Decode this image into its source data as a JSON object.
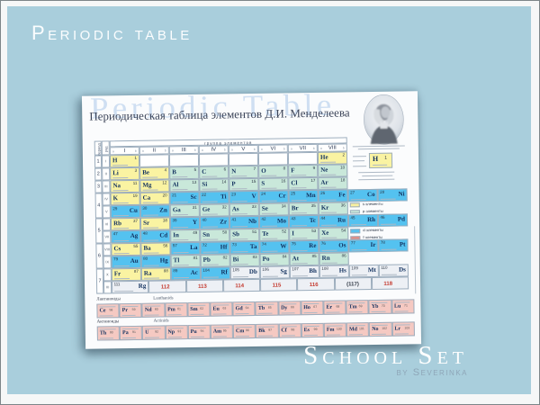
{
  "page": {
    "title": "Periodic table",
    "background": "#a9cedc",
    "brand": {
      "line1": "School Set",
      "line2": "by Severinka"
    }
  },
  "poster": {
    "watermark": "Periodic Table",
    "title": "Периодическая таблица элементов Д.И. Менделеева",
    "portrait": "Mendeleev portrait",
    "table": {
      "group_header": "группа элементов",
      "groups": [
        "I",
        "II",
        "III",
        "IV",
        "V",
        "VI",
        "VII",
        "VIII"
      ],
      "sub_a": "a",
      "sub_b": "b",
      "period_label": "период",
      "row_label": "ряд",
      "periods": [
        {
          "label": "1",
          "row": 0,
          "span": 1
        },
        {
          "label": "2",
          "row": 1,
          "span": 1
        },
        {
          "label": "3",
          "row": 2,
          "span": 1
        },
        {
          "label": "4",
          "row": 3,
          "span": 2
        },
        {
          "label": "5",
          "row": 5,
          "span": 2
        },
        {
          "label": "6",
          "row": 7,
          "span": 2
        },
        {
          "label": "7",
          "row": 9,
          "span": 2
        }
      ],
      "colors": {
        "yellow": "#faf3a2",
        "teal": "#c9e8da",
        "blue": "#54c2f0",
        "gray": "#edf0f5",
        "pink": "#f5c9c2",
        "red_number": "#c4372c"
      },
      "legend": [
        {
          "color": "#f8f0a0",
          "label": "s-элементы"
        },
        {
          "color": "#c9e8da",
          "label": "p-элементы"
        },
        {
          "color": "#54c2f0",
          "label": "d-элементы"
        },
        {
          "color": "#e88a80",
          "label": "f-элементы"
        }
      ],
      "sample": {
        "symbol": "H",
        "number": "1"
      },
      "rows": [
        {
          "ryad": "I",
          "cells": [
            {
              "g": 1,
              "n": "1",
              "s": "H",
              "c": "y"
            },
            {
              "g": 8,
              "n": "2",
              "s": "He",
              "c": "y"
            }
          ]
        },
        {
          "ryad": "II",
          "cells": [
            {
              "g": 1,
              "n": "3",
              "s": "Li",
              "c": "y"
            },
            {
              "g": 2,
              "n": "4",
              "s": "Be",
              "c": "y"
            },
            {
              "g": 3,
              "n": "5",
              "s": "B",
              "c": "t"
            },
            {
              "g": 4,
              "n": "6",
              "s": "C",
              "c": "t"
            },
            {
              "g": 5,
              "n": "7",
              "s": "N",
              "c": "t"
            },
            {
              "g": 6,
              "n": "8",
              "s": "O",
              "c": "t"
            },
            {
              "g": 7,
              "n": "9",
              "s": "F",
              "c": "t"
            },
            {
              "g": 8,
              "n": "10",
              "s": "Ne",
              "c": "t"
            }
          ]
        },
        {
          "ryad": "III",
          "cells": [
            {
              "g": 1,
              "n": "11",
              "s": "Na",
              "c": "y"
            },
            {
              "g": 2,
              "n": "12",
              "s": "Mg",
              "c": "y"
            },
            {
              "g": 3,
              "n": "13",
              "s": "Al",
              "c": "t"
            },
            {
              "g": 4,
              "n": "14",
              "s": "Si",
              "c": "t"
            },
            {
              "g": 5,
              "n": "15",
              "s": "P",
              "c": "t"
            },
            {
              "g": 6,
              "n": "16",
              "s": "S",
              "c": "t"
            },
            {
              "g": 7,
              "n": "17",
              "s": "Cl",
              "c": "t"
            },
            {
              "g": 8,
              "n": "18",
              "s": "Ar",
              "c": "t"
            }
          ]
        },
        {
          "ryad": "IV",
          "cells": [
            {
              "g": 1,
              "n": "19",
              "s": "K",
              "c": "y"
            },
            {
              "g": 2,
              "n": "20",
              "s": "Ca",
              "c": "y"
            },
            {
              "g": 3,
              "n": "21",
              "s": "Sc",
              "c": "b"
            },
            {
              "g": 4,
              "n": "22",
              "s": "Ti",
              "c": "b"
            },
            {
              "g": 5,
              "n": "23",
              "s": "V",
              "c": "b"
            },
            {
              "g": 6,
              "n": "24",
              "s": "Cr",
              "c": "b"
            },
            {
              "g": 7,
              "n": "25",
              "s": "Mn",
              "c": "b"
            },
            {
              "g": 8,
              "n": "26",
              "s": "Fe",
              "c": "b"
            },
            {
              "g": 9,
              "n": "27",
              "s": "Co",
              "c": "b"
            },
            {
              "g": 10,
              "n": "28",
              "s": "Ni",
              "c": "b"
            }
          ]
        },
        {
          "ryad": "V",
          "cells": [
            {
              "g": 1,
              "n": "29",
              "s": "Cu",
              "c": "b"
            },
            {
              "g": 2,
              "n": "30",
              "s": "Zn",
              "c": "b"
            },
            {
              "g": 3,
              "n": "31",
              "s": "Ga",
              "c": "t"
            },
            {
              "g": 4,
              "n": "32",
              "s": "Ge",
              "c": "t"
            },
            {
              "g": 5,
              "n": "33",
              "s": "As",
              "c": "t"
            },
            {
              "g": 6,
              "n": "34",
              "s": "Se",
              "c": "t"
            },
            {
              "g": 7,
              "n": "35",
              "s": "Br",
              "c": "t"
            },
            {
              "g": 8,
              "n": "36",
              "s": "Kr",
              "c": "t"
            }
          ]
        },
        {
          "ryad": "VI",
          "cells": [
            {
              "g": 1,
              "n": "37",
              "s": "Rb",
              "c": "y"
            },
            {
              "g": 2,
              "n": "38",
              "s": "Sr",
              "c": "y"
            },
            {
              "g": 3,
              "n": "39",
              "s": "Y",
              "c": "b"
            },
            {
              "g": 4,
              "n": "40",
              "s": "Zr",
              "c": "b"
            },
            {
              "g": 5,
              "n": "41",
              "s": "Nb",
              "c": "b"
            },
            {
              "g": 6,
              "n": "42",
              "s": "Mo",
              "c": "b"
            },
            {
              "g": 7,
              "n": "43",
              "s": "Tc",
              "c": "b"
            },
            {
              "g": 8,
              "n": "44",
              "s": "Ru",
              "c": "b"
            },
            {
              "g": 9,
              "n": "45",
              "s": "Rh",
              "c": "b"
            },
            {
              "g": 10,
              "n": "46",
              "s": "Pd",
              "c": "b"
            }
          ]
        },
        {
          "ryad": "VII",
          "cells": [
            {
              "g": 1,
              "n": "47",
              "s": "Ag",
              "c": "b"
            },
            {
              "g": 2,
              "n": "48",
              "s": "Cd",
              "c": "b"
            },
            {
              "g": 3,
              "n": "49",
              "s": "In",
              "c": "t"
            },
            {
              "g": 4,
              "n": "50",
              "s": "Sn",
              "c": "t"
            },
            {
              "g": 5,
              "n": "51",
              "s": "Sb",
              "c": "t"
            },
            {
              "g": 6,
              "n": "52",
              "s": "Te",
              "c": "t"
            },
            {
              "g": 7,
              "n": "53",
              "s": "I",
              "c": "t"
            },
            {
              "g": 8,
              "n": "54",
              "s": "Xe",
              "c": "t"
            }
          ]
        },
        {
          "ryad": "VIII",
          "cells": [
            {
              "g": 1,
              "n": "55",
              "s": "Cs",
              "c": "y"
            },
            {
              "g": 2,
              "n": "56",
              "s": "Ba",
              "c": "y"
            },
            {
              "g": 3,
              "n": "57",
              "s": "La",
              "c": "b"
            },
            {
              "g": 4,
              "n": "72",
              "s": "Hf",
              "c": "b"
            },
            {
              "g": 5,
              "n": "73",
              "s": "Ta",
              "c": "b"
            },
            {
              "g": 6,
              "n": "74",
              "s": "W",
              "c": "b"
            },
            {
              "g": 7,
              "n": "75",
              "s": "Re",
              "c": "b"
            },
            {
              "g": 8,
              "n": "76",
              "s": "Os",
              "c": "b"
            },
            {
              "g": 9,
              "n": "77",
              "s": "Ir",
              "c": "b"
            },
            {
              "g": 10,
              "n": "78",
              "s": "Pt",
              "c": "b"
            }
          ]
        },
        {
          "ryad": "IX",
          "cells": [
            {
              "g": 1,
              "n": "79",
              "s": "Au",
              "c": "b"
            },
            {
              "g": 2,
              "n": "80",
              "s": "Hg",
              "c": "b"
            },
            {
              "g": 3,
              "n": "81",
              "s": "Tl",
              "c": "t"
            },
            {
              "g": 4,
              "n": "82",
              "s": "Pb",
              "c": "t"
            },
            {
              "g": 5,
              "n": "83",
              "s": "Bi",
              "c": "t"
            },
            {
              "g": 6,
              "n": "84",
              "s": "Po",
              "c": "t"
            },
            {
              "g": 7,
              "n": "85",
              "s": "At",
              "c": "t"
            },
            {
              "g": 8,
              "n": "86",
              "s": "Rn",
              "c": "t"
            }
          ]
        },
        {
          "ryad": "X",
          "cells": [
            {
              "g": 1,
              "n": "87",
              "s": "Fr",
              "c": "y"
            },
            {
              "g": 2,
              "n": "88",
              "s": "Ra",
              "c": "y"
            },
            {
              "g": 3,
              "n": "89",
              "s": "Ac",
              "c": "b"
            },
            {
              "g": 4,
              "n": "104",
              "s": "Rf",
              "c": "b"
            },
            {
              "g": 5,
              "n": "105",
              "s": "Db",
              "c": "w"
            },
            {
              "g": 6,
              "n": "106",
              "s": "Sg",
              "c": "w"
            },
            {
              "g": 7,
              "n": "107",
              "s": "Bh",
              "c": "w"
            },
            {
              "g": 8,
              "n": "108",
              "s": "Hs",
              "c": "w"
            },
            {
              "g": 9,
              "n": "109",
              "s": "Mt",
              "c": "w"
            },
            {
              "g": 10,
              "n": "110",
              "s": "Ds",
              "c": "w"
            }
          ]
        },
        {
          "ryad": "XI",
          "wide": true,
          "cells": [
            {
              "g": 1,
              "n": "111",
              "s": "Rg",
              "c": "w"
            },
            {
              "g": 2,
              "n": "112",
              "c": "r"
            },
            {
              "g": 3,
              "n": "113",
              "c": "r"
            },
            {
              "g": 4,
              "n": "114",
              "c": "r"
            },
            {
              "g": 5,
              "n": "115",
              "c": "r"
            },
            {
              "g": 6,
              "n": "116",
              "c": "r"
            },
            {
              "g": 7,
              "n": "(117)",
              "c": "wd"
            },
            {
              "g": 8,
              "n": "118",
              "c": "r"
            }
          ]
        }
      ]
    },
    "lanthanides": {
      "label_ru": "Лантаноиды",
      "label_en": "Lanthanids",
      "cells": [
        {
          "n": "58",
          "s": "Ce"
        },
        {
          "n": "59",
          "s": "Pr"
        },
        {
          "n": "60",
          "s": "Nd"
        },
        {
          "n": "61",
          "s": "Pm"
        },
        {
          "n": "62",
          "s": "Sm"
        },
        {
          "n": "63",
          "s": "Eu"
        },
        {
          "n": "64",
          "s": "Gd"
        },
        {
          "n": "65",
          "s": "Tb"
        },
        {
          "n": "66",
          "s": "Dy"
        },
        {
          "n": "67",
          "s": "Ho"
        },
        {
          "n": "68",
          "s": "Er"
        },
        {
          "n": "69",
          "s": "Tm"
        },
        {
          "n": "70",
          "s": "Yb"
        },
        {
          "n": "71",
          "s": "Lu"
        }
      ]
    },
    "actinides": {
      "label_ru": "Актиноиды",
      "label_en": "Actinids",
      "cells": [
        {
          "n": "90",
          "s": "Th"
        },
        {
          "n": "91",
          "s": "Pa"
        },
        {
          "n": "92",
          "s": "U"
        },
        {
          "n": "93",
          "s": "Np"
        },
        {
          "n": "94",
          "s": "Pu"
        },
        {
          "n": "95",
          "s": "Am"
        },
        {
          "n": "96",
          "s": "Cm"
        },
        {
          "n": "97",
          "s": "Bk"
        },
        {
          "n": "98",
          "s": "Cf"
        },
        {
          "n": "99",
          "s": "Es"
        },
        {
          "n": "100",
          "s": "Fm"
        },
        {
          "n": "101",
          "s": "Md"
        },
        {
          "n": "102",
          "s": "No"
        },
        {
          "n": "103",
          "s": "Lr"
        }
      ]
    }
  }
}
